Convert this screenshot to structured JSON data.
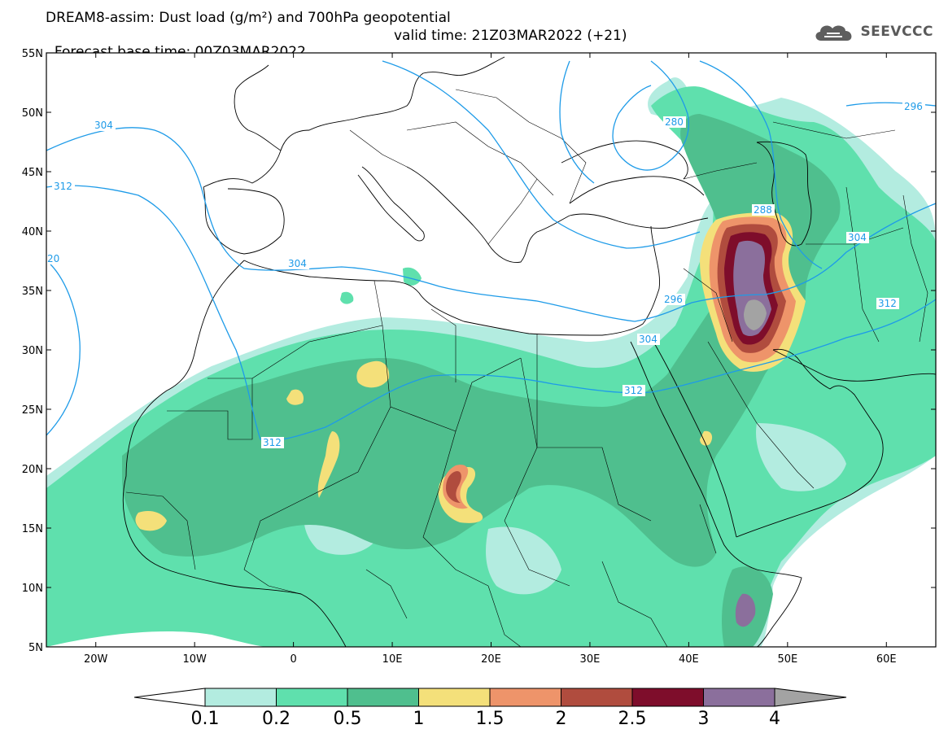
{
  "title_line1": "DREAM8-assim: Dust load (g/m²) and 700hPa geopotential",
  "title_line2_left": "Forecast base time: 00Z03MAR2022",
  "title_line2_right": "valid time: 21Z03MAR2022 (+21)",
  "logo_text": "SEEVCCC",
  "logo_icon": "cloud-logo-icon",
  "lat_ticks": [
    "55N",
    "50N",
    "45N",
    "40N",
    "35N",
    "30N",
    "25N",
    "20N",
    "15N",
    "10N",
    "5N"
  ],
  "lon_ticks": [
    "20W",
    "10W",
    "0",
    "10E",
    "20E",
    "30E",
    "40E",
    "50E",
    "60E"
  ],
  "geopotential_labels": [
    "304",
    "312",
    "20",
    "304",
    "312",
    "280",
    "296",
    "288",
    "296",
    "304",
    "304",
    "312",
    "312"
  ],
  "colorbar": {
    "levels": [
      "0.1",
      "0.2",
      "0.5",
      "1",
      "1.5",
      "2",
      "2.5",
      "3",
      "4"
    ],
    "colors": [
      "#ffffff",
      "#b3ece0",
      "#5fe0ad",
      "#4fbf8e",
      "#f4e07a",
      "#ee946a",
      "#b04c3e",
      "#7e0d2b",
      "#8b6f9c",
      "#a3a3a3"
    ]
  },
  "colors": {
    "geopotential_contour": "#1e9be8",
    "coastline": "#000000"
  }
}
